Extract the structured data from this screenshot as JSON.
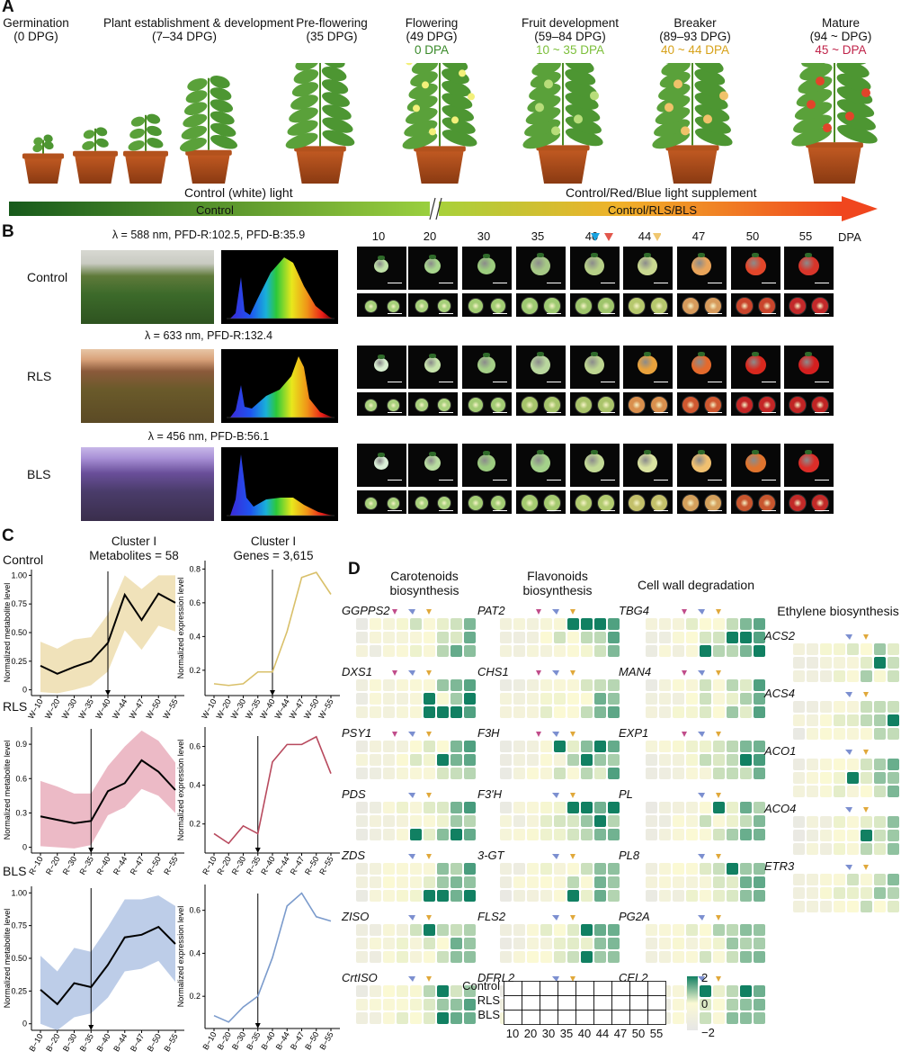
{
  "panelA": {
    "label": "A",
    "stages": [
      {
        "name": "Germination",
        "dpg": "(0 DPG)",
        "dpa": "",
        "dpa_color": ""
      },
      {
        "name": "Plant establishment & development",
        "dpg": "(7–34 DPG)",
        "dpa": "",
        "dpa_color": ""
      },
      {
        "name": "Pre-flowering",
        "dpg": "(35 DPG)",
        "dpa": "",
        "dpa_color": ""
      },
      {
        "name": "Flowering",
        "dpg": "(49 DPG)",
        "dpa": "0 DPA",
        "dpa_color": "#3a8a2a"
      },
      {
        "name": "Fruit development",
        "dpg": "(59–84 DPG)",
        "dpa": "10 ~ 35 DPA",
        "dpa_color": "#7cbf3a"
      },
      {
        "name": "Breaker",
        "dpg": "(89–93 DPG)",
        "dpa": "40 ~ 44 DPA",
        "dpa_color": "#d7a21a"
      },
      {
        "name": "Mature",
        "dpg": "(94 ~ DPG)",
        "dpa": "45 ~ DPA",
        "dpa_color": "#c0244a"
      }
    ],
    "light_left": "Control (white) light",
    "light_right": "Control/Red/Blue light supplement",
    "arrow_left": "Control",
    "arrow_right": "Control/RLS/BLS"
  },
  "panelB": {
    "label": "B",
    "dpa_unit": "DPA",
    "days": [
      "10",
      "20",
      "30",
      "35",
      "40",
      "44",
      "47",
      "50",
      "55"
    ],
    "rows": [
      {
        "name": "Control",
        "title": "λ = 588 nm, PFD-R:102.5, PFD-B:35.9",
        "fruit_colors": [
          "#bfe0a7",
          "#a8d58d",
          "#9ccc7e",
          "#a6c886",
          "#b6cf87",
          "#c9d890",
          "#e9a45a",
          "#e2462a",
          "#d8352a"
        ],
        "cut_colors": [
          "#a6cf7a",
          "#a6cf7a",
          "#a2cc73",
          "#9fca72",
          "#9fc56c",
          "#b6c86d",
          "#d79b5c",
          "#c9452c",
          "#c2292a"
        ]
      },
      {
        "name": "RLS",
        "title": "λ = 633 nm, PFD-R:132.4",
        "fruit_colors": [
          "#d8eed0",
          "#c7e3ab",
          "#a5cf88",
          "#b9d79e",
          "#bdd590",
          "#e9a23c",
          "#e46a2c",
          "#d8281e",
          "#d41f1f"
        ],
        "cut_colors": [
          "#a9d07d",
          "#a9d07d",
          "#a2cb74",
          "#a6c46b",
          "#aac46b",
          "#d98f4d",
          "#cf5830",
          "#c42626",
          "#c02424"
        ]
      },
      {
        "name": "BLS",
        "title": "λ = 456 nm, PFD-B:56.1",
        "fruit_colors": [
          "#d9eed6",
          "#b8dca0",
          "#9ccb80",
          "#a4d18a",
          "#c2d995",
          "#d9e2a0",
          "#f0c070",
          "#e0742e",
          "#dc2d28"
        ],
        "cut_colors": [
          "#a8d07c",
          "#a8d07c",
          "#a3cc74",
          "#a5ca70",
          "#b2cb70",
          "#c3c06a",
          "#d4a05c",
          "#c8562e",
          "#c22a28"
        ]
      }
    ],
    "marker_days": [
      {
        "day": "40",
        "colors": [
          "#1aa3e0",
          "#e2574c"
        ]
      },
      {
        "day": "44",
        "colors": [
          "#f0c770"
        ]
      }
    ]
  },
  "panelC": {
    "label": "C",
    "row_labels": [
      "Control",
      "RLS",
      "BLS"
    ],
    "col_titles": [
      [
        "Cluster I",
        "Metabolites = 58"
      ],
      [
        "Cluster I",
        "Genes = 3,615"
      ]
    ],
    "ylabel_left": "Normalized metabolite level",
    "ylabel_right": "Normalized expression level"
  },
  "chart_data": [
    {
      "type": "line",
      "title": "Cluster I Metabolites = 58",
      "row": "Control",
      "ylabel": "Normalized metabolite level",
      "categories": [
        "W−10",
        "W−20",
        "W−30",
        "W−35",
        "W−40",
        "W−44",
        "W−47",
        "W−50",
        "W−55"
      ],
      "yticks": [
        "0",
        "0.25",
        "0.50",
        "0.75",
        "1.00"
      ],
      "ylim": [
        -0.05,
        1.05
      ],
      "series": [
        {
          "values": [
            0.21,
            0.14,
            0.2,
            0.25,
            0.41,
            0.83,
            0.61,
            0.84,
            0.76
          ],
          "lower": [
            -0.02,
            -0.03,
            0.0,
            0.04,
            0.16,
            0.52,
            0.35,
            0.56,
            0.51
          ],
          "upper": [
            0.42,
            0.36,
            0.44,
            0.46,
            0.66,
            1.0,
            0.88,
            1.0,
            1.0
          ]
        }
      ],
      "vline_at": "W−40",
      "line_color": "#000000",
      "band_color": "#eedfb2"
    },
    {
      "type": "line",
      "title": "Cluster I Genes = 3,615",
      "row": "Control",
      "ylabel": "Normalized expression level",
      "categories": [
        "W−10",
        "W−20",
        "W−30",
        "W−35",
        "W−40",
        "W−44",
        "W−47",
        "W−50",
        "W−55"
      ],
      "yticks": [
        "0.2",
        "0.4",
        "0.6",
        "0.8"
      ],
      "ylim": [
        0.05,
        0.85
      ],
      "series": [
        {
          "values": [
            0.12,
            0.11,
            0.12,
            0.19,
            0.19,
            0.43,
            0.75,
            0.78,
            0.65
          ]
        }
      ],
      "vline_at": "W−40",
      "line_color": "#d9c06a"
    },
    {
      "type": "line",
      "title": "",
      "row": "RLS",
      "ylabel": "Normalized metabolite level",
      "categories": [
        "R−10",
        "R−20",
        "R−30",
        "R−35",
        "R−40",
        "R−44",
        "R−47",
        "R−50",
        "R−55"
      ],
      "yticks": [
        "0",
        "0.3",
        "0.6",
        "0.9"
      ],
      "ylim": [
        -0.05,
        1.05
      ],
      "series": [
        {
          "values": [
            0.27,
            0.24,
            0.21,
            0.23,
            0.49,
            0.56,
            0.76,
            0.66,
            0.5
          ],
          "lower": [
            0.01,
            0.0,
            -0.01,
            0.02,
            0.28,
            0.35,
            0.51,
            0.45,
            0.3
          ],
          "upper": [
            0.58,
            0.53,
            0.47,
            0.47,
            0.71,
            0.88,
            1.02,
            0.93,
            0.74
          ]
        }
      ],
      "vline_at": "R−35",
      "line_color": "#000000",
      "band_color": "#eab3c0"
    },
    {
      "type": "line",
      "title": "",
      "row": "RLS",
      "ylabel": "Normalized expression level",
      "categories": [
        "R−10",
        "R−20",
        "R−30",
        "R−35",
        "R−40",
        "R−44",
        "R−47",
        "R−50",
        "R−55"
      ],
      "yticks": [
        "0.2",
        "0.4",
        "0.6"
      ],
      "ylim": [
        0.05,
        0.7
      ],
      "series": [
        {
          "values": [
            0.15,
            0.1,
            0.19,
            0.15,
            0.52,
            0.61,
            0.61,
            0.65,
            0.46
          ]
        }
      ],
      "vline_at": "R−35",
      "line_color": "#b84a5e"
    },
    {
      "type": "line",
      "title": "",
      "row": "BLS",
      "ylabel": "Normalized metabolite level",
      "categories": [
        "B−10",
        "B−20",
        "B−30",
        "B−35",
        "B−40",
        "B−44",
        "B−47",
        "B−50",
        "B−55"
      ],
      "yticks": [
        "0",
        "0.25",
        "0.50",
        "0.75",
        "1.00"
      ],
      "ylim": [
        -0.05,
        1.05
      ],
      "series": [
        {
          "values": [
            0.26,
            0.15,
            0.31,
            0.28,
            0.45,
            0.66,
            0.68,
            0.74,
            0.61
          ],
          "lower": [
            0.0,
            -0.08,
            0.05,
            0.08,
            0.2,
            0.4,
            0.42,
            0.48,
            0.32
          ],
          "upper": [
            0.52,
            0.4,
            0.58,
            0.55,
            0.74,
            0.95,
            0.95,
            0.98,
            0.9
          ]
        }
      ],
      "vline_at": "B−35",
      "line_color": "#000000",
      "band_color": "#b6c8e6"
    },
    {
      "type": "line",
      "title": "",
      "row": "BLS",
      "ylabel": "Normalized expression level",
      "categories": [
        "B−10",
        "B−20",
        "B−30",
        "B−35",
        "B−40",
        "B−44",
        "B−47",
        "B−50",
        "B−55"
      ],
      "yticks": [
        "0.2",
        "0.4",
        "0.6"
      ],
      "ylim": [
        0.05,
        0.72
      ],
      "series": [
        {
          "values": [
            0.11,
            0.08,
            0.15,
            0.2,
            0.38,
            0.62,
            0.68,
            0.57,
            0.55
          ]
        }
      ],
      "vline_at": "B−35",
      "line_color": "#7b9bcc"
    },
    {
      "type": "heatmap",
      "title": "",
      "legend_ticks": [
        "2",
        "0",
        "−2"
      ],
      "columns": [
        "10",
        "20",
        "30",
        "35",
        "40",
        "44",
        "47",
        "50",
        "55"
      ],
      "rows": [
        "Control",
        "RLS",
        "BLS"
      ]
    }
  ],
  "panelD": {
    "label": "D",
    "categories": [
      "Carotenoids\nbiosynthesis",
      "Flavonoids\nbiosynthesis",
      "Cell wall degradation",
      "Ethylene biosynthesis"
    ],
    "legend": {
      "rows": [
        "Control",
        "RLS",
        "BLS"
      ],
      "cols": [
        "10",
        "20",
        "30",
        "35",
        "40",
        "44",
        "47",
        "50",
        "55"
      ],
      "max": "2",
      "mid": "0",
      "min": "−2"
    },
    "groups": [
      {
        "genes": [
          "GGPPS2",
          "DXS1",
          "PSY1",
          "PDS",
          "ZDS",
          "ZISO",
          "CrtISO"
        ]
      },
      {
        "genes": [
          "PAT2",
          "CHS1",
          "F3H",
          "F3'H",
          "3-GT",
          "FLS2",
          "DFRL2"
        ]
      },
      {
        "genes": [
          "TBG4",
          "MAN4",
          "EXP1",
          "PL",
          "PL8",
          "PG2A",
          "CEL2"
        ]
      },
      {
        "genes": [
          "ACS2",
          "ACS4",
          "ACO1",
          "ACO4",
          "ETR3"
        ]
      }
    ],
    "colors": {
      "low": "#e6e6e6",
      "zero": "#fbf9d4",
      "high": "#118062"
    }
  }
}
